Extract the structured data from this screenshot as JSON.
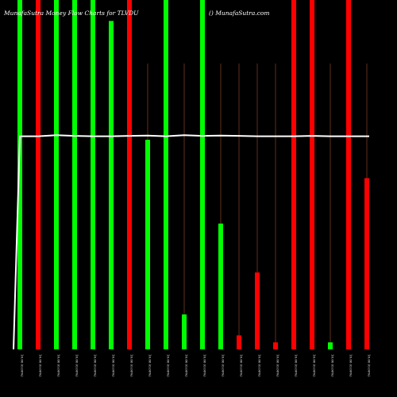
{
  "header": {
    "left": "MunafaSutra Money Flow Charts for TLVDU",
    "right": "() MunafaSutra.com"
  },
  "colors": {
    "background": "#000000",
    "up": "#00ff00",
    "down": "#ff0000",
    "gridline": "#a0522d",
    "price_line": "#ffffff",
    "text": "#ffffff"
  },
  "chart_data": {
    "type": "bar",
    "title": "MunafaSutra Money Flow Charts for TLVDU",
    "categories": [
      "10.00 (0.00%)",
      "10.00 (0.00%)",
      "10.00 (0.00%)",
      "10.00 (0.00%)",
      "10.00 (0.00%)",
      "10.00 (0.00%)",
      "10.00 (0.00%)",
      "10.00 (0.00%)",
      "10.00 (0.00%)",
      "10.00 (0.00%)",
      "10.00 (0.00%)",
      "10.00 (0.00%)",
      "10.00 (0.00%)",
      "10.00 (0.00%)",
      "10.00 (0.00%)",
      "10.00 (0.00%)",
      "10.00 (0.00%)",
      "10.00 (0.00%)",
      "10.00 (0.00%)",
      "10.00 (0.00%)"
    ],
    "values": [
      100,
      100,
      100,
      100,
      100,
      94,
      100,
      60,
      100,
      10,
      100,
      36,
      4,
      22,
      2,
      100,
      100,
      2,
      100,
      49
    ],
    "directions": [
      "up",
      "down",
      "up",
      "up",
      "up",
      "up",
      "down",
      "up",
      "up",
      "up",
      "up",
      "up",
      "down",
      "down",
      "down",
      "down",
      "down",
      "up",
      "down",
      "down"
    ],
    "price_line": [
      61,
      61,
      61.3,
      61.1,
      61,
      61,
      61.1,
      61.2,
      61,
      61.3,
      61.1,
      61.2,
      61.1,
      61,
      61,
      61,
      61.1,
      61,
      61,
      61
    ],
    "price_line_start": 0,
    "ylim": [
      0,
      100
    ],
    "grid": true
  }
}
